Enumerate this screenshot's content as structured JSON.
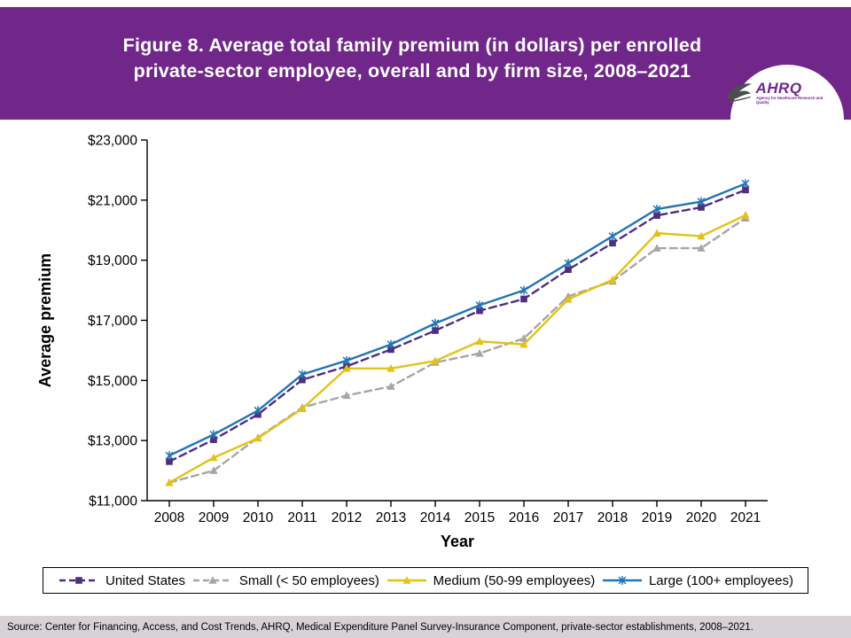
{
  "header": {
    "title_line1": "Figure 8. Average total family premium (in dollars) per enrolled",
    "title_line2": "private-sector employee, overall and by firm size, 2008–2021",
    "logo": {
      "name": "AHRQ",
      "tagline": "Agency for Healthcare Research and Quality"
    }
  },
  "colors": {
    "header_background": "#71278A",
    "logo_text": "#71278A",
    "footer_background": "#D6D2D6",
    "axis": "#000000"
  },
  "chart_data": {
    "type": "line",
    "title": "Figure 8. Average total family premium (in dollars) per enrolled private-sector employee, overall and by firm size, 2008–2021",
    "xlabel": "Year",
    "ylabel": "Average premium",
    "ylim": [
      11000,
      23000
    ],
    "grid": false,
    "legend_position": "bottom",
    "x": [
      "2008",
      "2009",
      "2010",
      "2011",
      "2012",
      "2013",
      "2014",
      "2015",
      "2016",
      "2017",
      "2018",
      "2019",
      "2020",
      "2021"
    ],
    "y_ticks": [
      {
        "value": 11000,
        "label": "$11,000"
      },
      {
        "value": 13000,
        "label": "$13,000"
      },
      {
        "value": 15000,
        "label": "$15,000"
      },
      {
        "value": 17000,
        "label": "$17,000"
      },
      {
        "value": 19000,
        "label": "$19,000"
      },
      {
        "value": 21000,
        "label": "$21,000"
      },
      {
        "value": 23000,
        "label": "$23,000"
      }
    ],
    "series": [
      {
        "name": "United States",
        "color": "#4F2D7F",
        "line_style": "dashed",
        "marker": "square",
        "values": [
          12300,
          13030,
          13870,
          15020,
          15470,
          16030,
          16660,
          17320,
          17710,
          18690,
          19570,
          20490,
          20760,
          21340
        ]
      },
      {
        "name": "Small (< 50 employees)",
        "color": "#A6A6A6",
        "line_style": "dashed",
        "marker": "triangle",
        "values": [
          11600,
          12000,
          13100,
          14100,
          14500,
          14800,
          15600,
          15900,
          16400,
          17800,
          18300,
          19400,
          19400,
          20400
        ]
      },
      {
        "name": "Medium (50-99 employees)",
        "color": "#E2C217",
        "line_style": "solid",
        "marker": "triangle",
        "values": [
          11600,
          12430,
          13080,
          14060,
          15400,
          15400,
          15650,
          16300,
          16200,
          17700,
          18350,
          19900,
          19800,
          20500
        ]
      },
      {
        "name": "Large (100+ employees)",
        "color": "#2274B5",
        "line_style": "solid",
        "marker": "asterisk",
        "values": [
          12500,
          13200,
          14000,
          15200,
          15660,
          16200,
          16900,
          17500,
          18000,
          18900,
          19800,
          20700,
          20950,
          21550
        ]
      }
    ]
  },
  "footer": {
    "source": "Source: Center for Financing, Access, and Cost Trends, AHRQ, Medical Expenditure Panel Survey-Insurance Component, private-sector establishments, 2008–2021."
  }
}
